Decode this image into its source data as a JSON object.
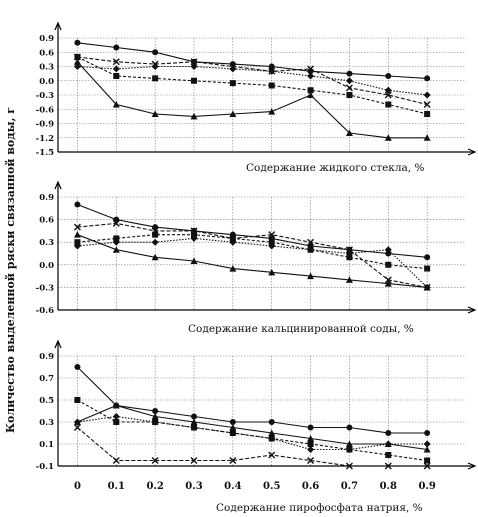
{
  "figure": {
    "ylabel": "Количество выделенной ряски связанной воды, г",
    "xlabel": "Содержание пирофосфата натрия, %",
    "x_ticks": [
      "0",
      "0.1",
      "0.2",
      "0.3",
      "0.4",
      "0.5",
      "0.6",
      "0.7",
      "0.8",
      "0.9"
    ]
  },
  "chart_data": [
    {
      "type": "line",
      "title": "",
      "xlabel": "Содержание жидкого стекла, %",
      "ylabel": "",
      "ylim": [
        -1.5,
        0.9
      ],
      "yticks": [
        "0.9",
        "0.6",
        "0.3",
        "0.0",
        "-0.3",
        "-0.6",
        "-0.9",
        "-1.2",
        "-1.5"
      ],
      "x": [
        0,
        0.1,
        0.2,
        0.3,
        0.4,
        0.5,
        0.6,
        0.7,
        0.8,
        0.9
      ],
      "series": [
        {
          "marker": "circle",
          "values": [
            0.8,
            0.7,
            0.6,
            0.4,
            0.35,
            0.3,
            0.2,
            0.15,
            0.1,
            0.05
          ]
        },
        {
          "marker": "square",
          "values": [
            0.5,
            0.1,
            0.05,
            0.0,
            -0.05,
            -0.1,
            -0.2,
            -0.3,
            -0.5,
            -0.7
          ]
        },
        {
          "marker": "triangle",
          "values": [
            0.4,
            -0.5,
            -0.7,
            -0.75,
            -0.7,
            -0.65,
            -0.3,
            -1.1,
            -1.2,
            -1.2
          ]
        },
        {
          "marker": "diamond",
          "values": [
            0.3,
            0.25,
            0.3,
            0.3,
            0.25,
            0.2,
            0.1,
            0.0,
            -0.2,
            -0.3
          ]
        },
        {
          "marker": "x",
          "values": [
            0.5,
            0.4,
            0.35,
            0.4,
            0.3,
            0.2,
            0.25,
            -0.15,
            -0.3,
            -0.5
          ]
        }
      ]
    },
    {
      "type": "line",
      "title": "",
      "xlabel": "Содержание кальцинированной соды, %",
      "ylabel": "",
      "ylim": [
        -0.6,
        0.9
      ],
      "yticks": [
        "0.9",
        "0.6",
        "0.3",
        "0.0",
        "-0.3",
        "-0.6"
      ],
      "x": [
        0,
        0.1,
        0.2,
        0.3,
        0.4,
        0.5,
        0.6,
        0.7,
        0.8,
        0.9
      ],
      "series": [
        {
          "marker": "circle",
          "values": [
            0.8,
            0.6,
            0.5,
            0.45,
            0.4,
            0.35,
            0.25,
            0.2,
            0.15,
            0.1
          ]
        },
        {
          "marker": "square",
          "values": [
            0.3,
            0.35,
            0.4,
            0.4,
            0.35,
            0.3,
            0.2,
            0.1,
            0.0,
            -0.05
          ]
        },
        {
          "marker": "triangle",
          "values": [
            0.4,
            0.2,
            0.1,
            0.05,
            -0.05,
            -0.1,
            -0.15,
            -0.2,
            -0.25,
            -0.3
          ]
        },
        {
          "marker": "diamond",
          "values": [
            0.25,
            0.3,
            0.3,
            0.35,
            0.3,
            0.25,
            0.2,
            0.15,
            0.2,
            -0.3
          ]
        },
        {
          "marker": "x",
          "values": [
            0.5,
            0.55,
            0.45,
            0.45,
            0.35,
            0.4,
            0.3,
            0.2,
            -0.2,
            -0.3
          ]
        }
      ]
    },
    {
      "type": "line",
      "title": "",
      "xlabel": "Содержание пирофосфата натрия, %",
      "ylabel": "",
      "ylim": [
        -0.1,
        0.9
      ],
      "yticks": [
        "0.9",
        "0.7",
        "0.5",
        "0.3",
        "0.1",
        "-0.1"
      ],
      "ytick_values": [
        0.9,
        0.7,
        0.5,
        0.3,
        0.1,
        -0.1
      ],
      "x": [
        0,
        0.1,
        0.2,
        0.3,
        0.4,
        0.5,
        0.6,
        0.7,
        0.8,
        0.9
      ],
      "series": [
        {
          "marker": "circle",
          "values": [
            0.8,
            0.45,
            0.4,
            0.35,
            0.3,
            0.3,
            0.25,
            0.25,
            0.2,
            0.2
          ]
        },
        {
          "marker": "square",
          "values": [
            0.5,
            0.3,
            0.3,
            0.25,
            0.2,
            0.15,
            0.1,
            0.05,
            0.0,
            -0.05
          ]
        },
        {
          "marker": "triangle",
          "values": [
            0.3,
            0.45,
            0.35,
            0.3,
            0.25,
            0.2,
            0.15,
            0.1,
            0.1,
            0.05
          ]
        },
        {
          "marker": "diamond",
          "values": [
            0.3,
            0.35,
            0.3,
            0.25,
            0.2,
            0.15,
            0.05,
            0.05,
            0.1,
            0.1
          ]
        },
        {
          "marker": "x",
          "values": [
            0.25,
            -0.05,
            -0.05,
            -0.05,
            -0.05,
            0.0,
            -0.05,
            -0.1,
            -0.1,
            -0.1
          ]
        }
      ]
    }
  ]
}
